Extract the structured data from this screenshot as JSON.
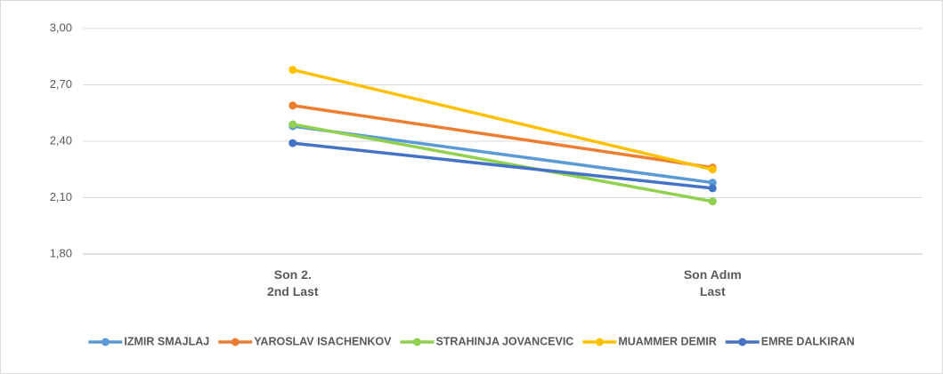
{
  "chart_data": {
    "type": "line",
    "categories": [
      "Son 2.\n2nd Last",
      "Son Adım\nLast"
    ],
    "series": [
      {
        "name": "IZMIR SMAJLAJ",
        "color": "#5b9bd5",
        "values": [
          2.48,
          2.18
        ]
      },
      {
        "name": "YAROSLAV ISACHENKOV",
        "color": "#ed7d31",
        "values": [
          2.59,
          2.26
        ]
      },
      {
        "name": "STRAHINJA JOVANCEVIC",
        "color": "#92d050",
        "values": [
          2.49,
          2.08
        ]
      },
      {
        "name": "MUAMMER DEMIR",
        "color": "#ffc000",
        "values": [
          2.78,
          2.25
        ]
      },
      {
        "name": "EMRE DALKIRAN",
        "color": "#4472c4",
        "values": [
          2.39,
          2.15
        ]
      }
    ],
    "ylim": [
      1.8,
      3.0
    ],
    "yticks": [
      {
        "value": 1.8,
        "label": "1,80"
      },
      {
        "value": 2.1,
        "label": "2,10"
      },
      {
        "value": 2.4,
        "label": "2,40"
      },
      {
        "value": 2.7,
        "label": "2,70"
      },
      {
        "value": 3.0,
        "label": "3,00"
      }
    ],
    "grid": true,
    "legend": "bottom"
  }
}
